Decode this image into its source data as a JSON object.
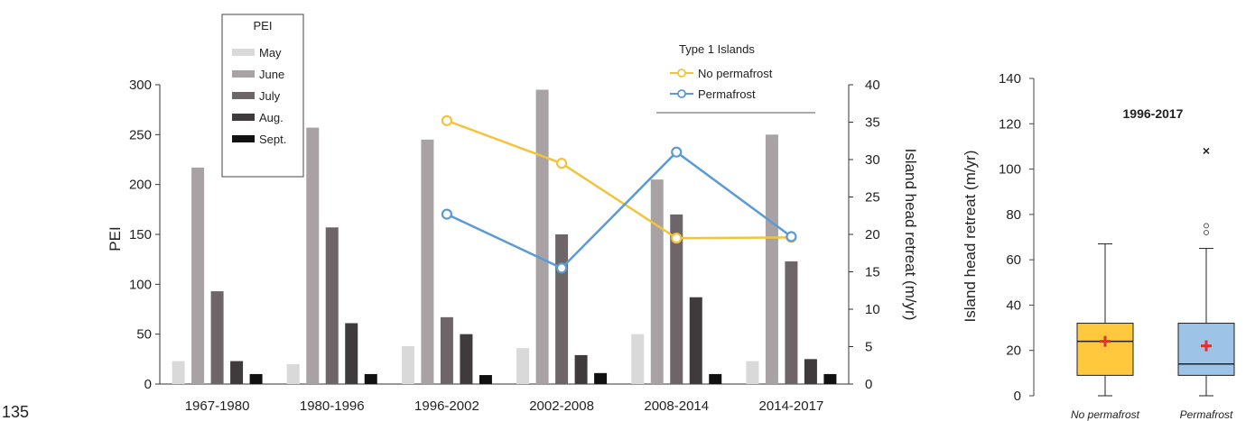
{
  "page_number": "135",
  "chart_data": [
    {
      "type": "bar",
      "ylabel": "PEI",
      "y2label": "Island head retreat  (m/yr)",
      "ylim": [
        0,
        300
      ],
      "yticks": [
        "0",
        "50",
        "100",
        "150",
        "200",
        "250",
        "300"
      ],
      "y2lim": [
        0,
        40
      ],
      "y2ticks": [
        "0",
        "5",
        "10",
        "15",
        "20",
        "25",
        "30",
        "35",
        "40"
      ],
      "categories": [
        "1967-1980",
        "1980-1996",
        "1996-2002",
        "2002-2008",
        "2008-2014",
        "2014-2017"
      ],
      "legend_title": "PEI",
      "series": [
        {
          "name": "May",
          "color": "#d9d9d9",
          "values": [
            23,
            20,
            38,
            36,
            50,
            23
          ]
        },
        {
          "name": "June",
          "color": "#a8a2a4",
          "values": [
            217,
            257,
            245,
            295,
            205,
            250
          ]
        },
        {
          "name": "July",
          "color": "#6d6567",
          "values": [
            93,
            157,
            67,
            150,
            170,
            123
          ]
        },
        {
          "name": "Aug.",
          "color": "#3f3a3b",
          "values": [
            23,
            61,
            50,
            29,
            87,
            25
          ]
        },
        {
          "name": "Sept.",
          "color": "#111111",
          "values": [
            10,
            10,
            9,
            11,
            10,
            10
          ]
        }
      ],
      "line_legend_title": "Type 1 Islands",
      "line_series": [
        {
          "name": "No permafrost",
          "color": "#f2c43b",
          "x": [
            "1996-2002",
            "2002-2008",
            "2008-2014",
            "2014-2017"
          ],
          "values": [
            35.2,
            29.5,
            19.5,
            19.6
          ]
        },
        {
          "name": "Permafrost",
          "color": "#5b9bd5",
          "x": [
            "1996-2002",
            "2002-2008",
            "2008-2014",
            "2014-2017"
          ],
          "values": [
            22.7,
            15.5,
            31.0,
            19.7
          ]
        }
      ]
    },
    {
      "type": "box",
      "title": "1996-2017",
      "ylabel": "Island head retreat  (m/yr)",
      "ylim": [
        0,
        140
      ],
      "yticks": [
        "0",
        "20",
        "40",
        "60",
        "80",
        "100",
        "120",
        "140"
      ],
      "boxes": [
        {
          "name": "No permafrost",
          "color": "#ffc83d",
          "min": 0,
          "q1": 9,
          "median": 24,
          "q3": 32,
          "max": 67,
          "mean": 24,
          "outliers": []
        },
        {
          "name": "Permafrost",
          "color": "#9dc3e6",
          "min": 0,
          "q1": 9,
          "median": 14,
          "q3": 32,
          "max": 65,
          "mean": 22,
          "outliers": [
            72,
            75
          ],
          "extreme": [
            108
          ]
        }
      ]
    }
  ]
}
